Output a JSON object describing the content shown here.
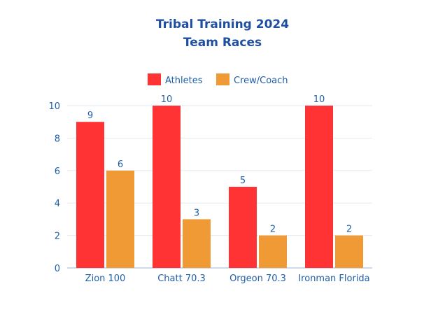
{
  "chart_data": {
    "type": "bar",
    "title": "Tribal Training 2024",
    "subtitle": "Team Races",
    "categories": [
      "Zion 100",
      "Chatt 70.3",
      "Orgeon 70.3",
      "Ironman Florida"
    ],
    "series": [
      {
        "name": "Athletes",
        "values": [
          9,
          10,
          5,
          10
        ],
        "color": "#ff3333"
      },
      {
        "name": "Crew/Coach",
        "values": [
          6,
          3,
          2,
          2
        ],
        "color": "#f09a35"
      }
    ],
    "ylim": [
      0,
      10
    ],
    "yticks": [
      "0",
      "2",
      "4",
      "6",
      "8",
      "10"
    ],
    "grid": true,
    "legend": "top",
    "data_labels": true,
    "text_color": "#1f5fa8",
    "title_color": "#1f4fa0"
  }
}
